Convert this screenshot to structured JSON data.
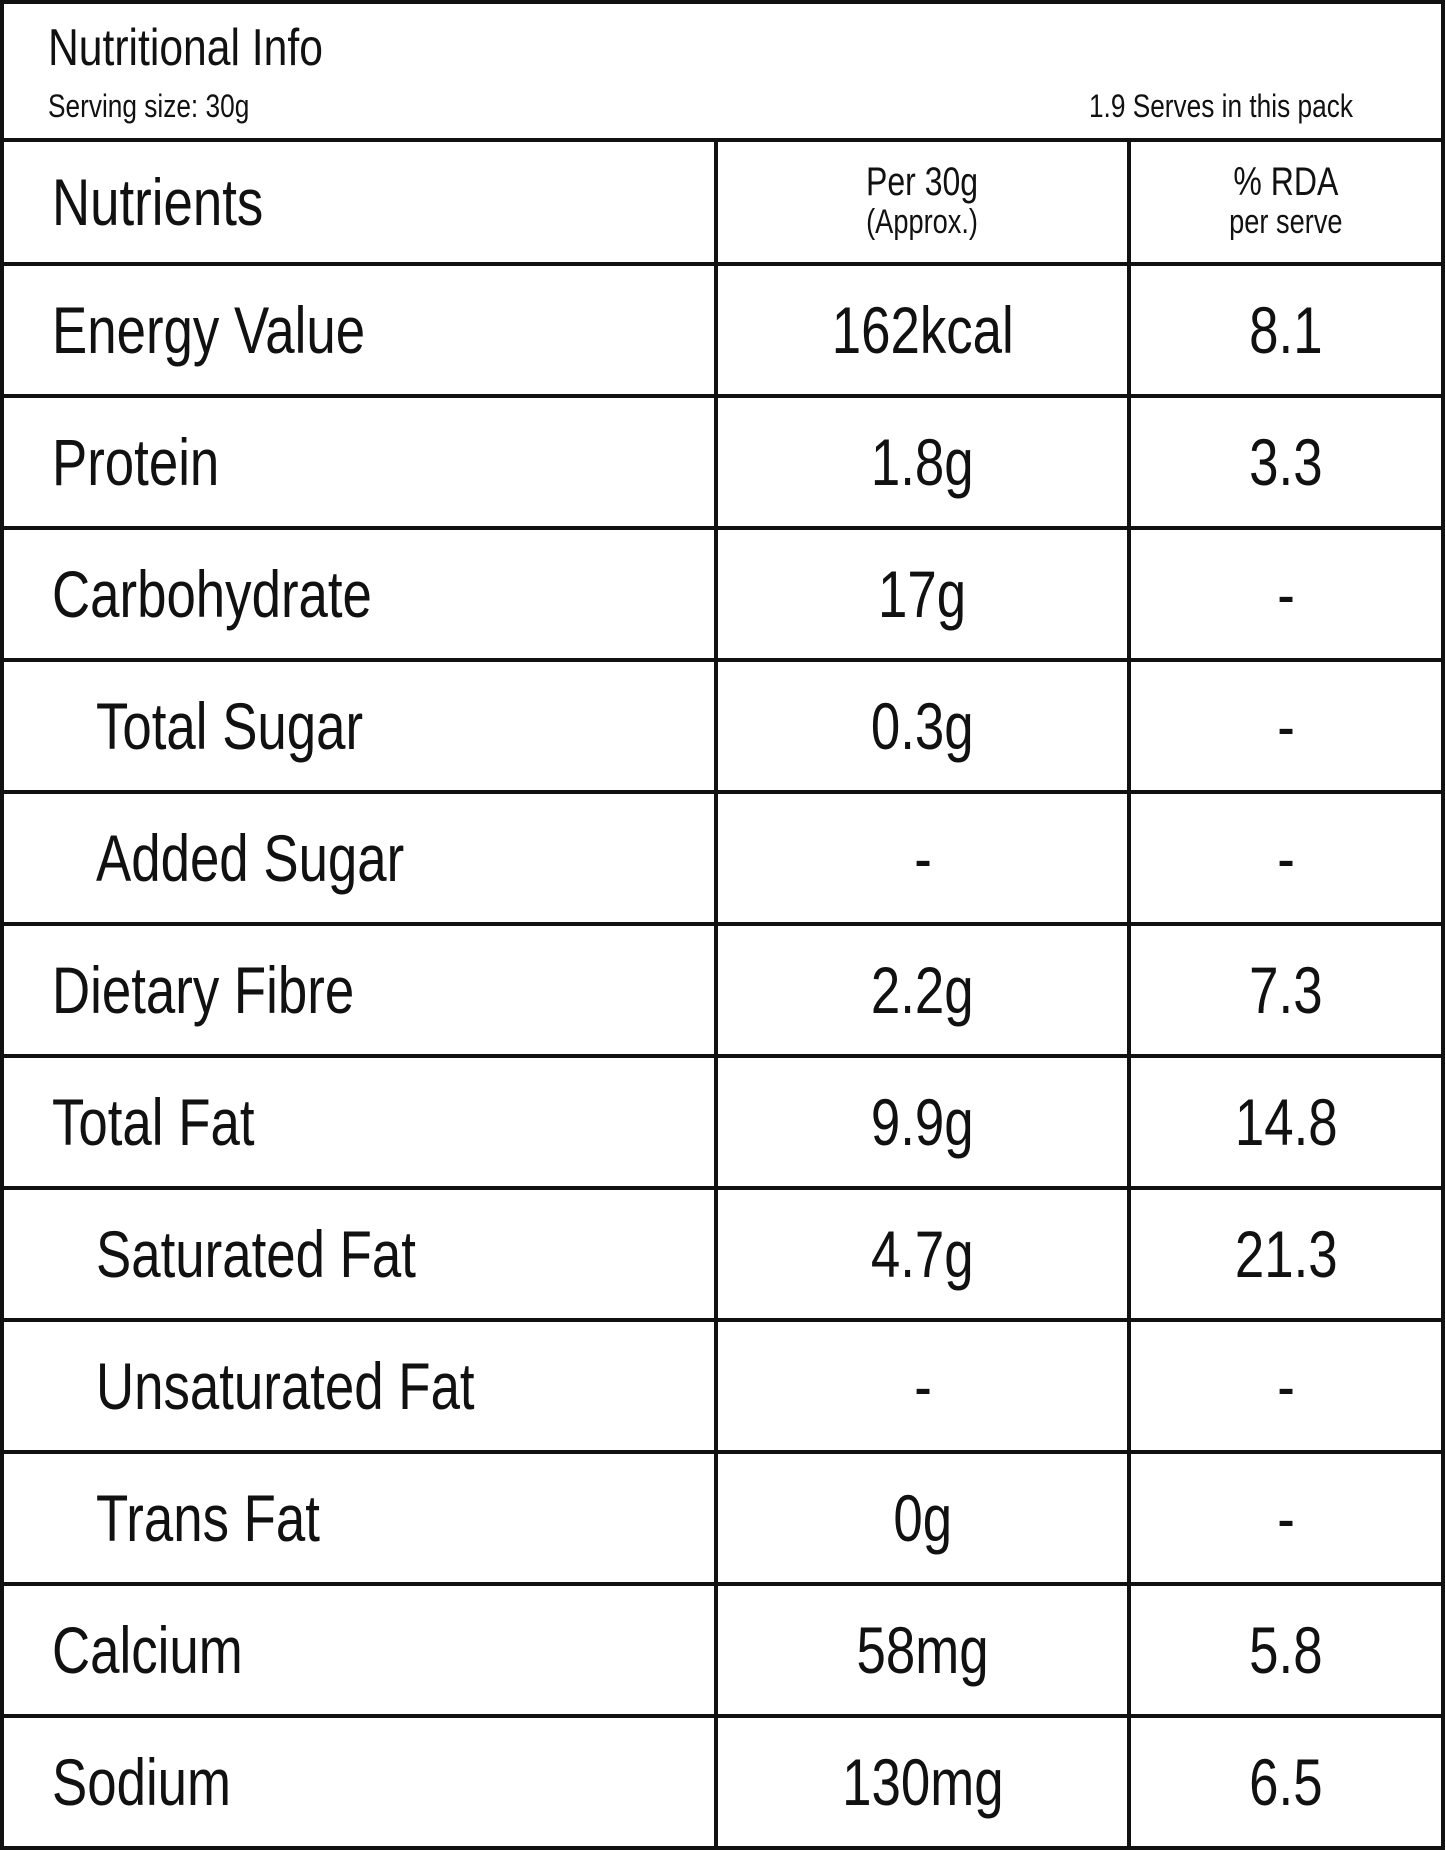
{
  "header": {
    "title": "Nutritional Info",
    "serving_size": "Serving  size: 30g",
    "serves": "1.9 Serves in this pack"
  },
  "table": {
    "columns": [
      "Nutrients",
      [
        "Per 30g",
        "(Approx.)"
      ],
      [
        "% RDA",
        "per serve"
      ]
    ],
    "rows": [
      [
        "Energy Value",
        "162kcal",
        "8.1"
      ],
      [
        "Protein",
        "1.8g",
        "3.3"
      ],
      [
        "Carbohydrate",
        "17g",
        "-"
      ],
      [
        "Total Sugar",
        "0.3g",
        "-"
      ],
      [
        "Added Sugar",
        "-",
        "-"
      ],
      [
        "Dietary Fibre",
        "2.2g",
        "7.3"
      ],
      [
        "Total Fat",
        "9.9g",
        "14.8"
      ],
      [
        "Saturated Fat",
        "4.7g",
        "21.3"
      ],
      [
        "Unsaturated Fat",
        "-",
        "-"
      ],
      [
        "Trans Fat",
        "0g",
        "-"
      ],
      [
        "Calcium",
        "58mg",
        "5.8"
      ],
      [
        "Sodium",
        "130mg",
        "6.5"
      ]
    ]
  }
}
